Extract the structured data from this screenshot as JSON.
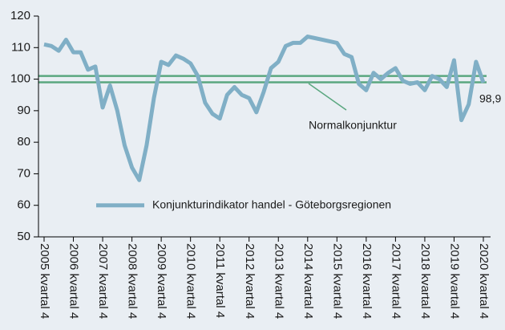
{
  "chart_data": {
    "type": "line",
    "categories": [
      "2005 kvartal 4",
      null,
      null,
      null,
      "2006 kvartal 4",
      null,
      null,
      null,
      "2007 kvartal 4",
      null,
      null,
      null,
      "2008 kvartal 4",
      null,
      null,
      null,
      "2009 kvartal 4",
      null,
      null,
      null,
      "2010 kvartal 4",
      null,
      null,
      null,
      "2011 kvartal 4",
      null,
      null,
      null,
      "2012 kvartal 4",
      null,
      null,
      null,
      "2013 kvartal 4",
      null,
      null,
      null,
      "2014 kvartal 4",
      null,
      null,
      null,
      "2015 kvartal 4",
      null,
      null,
      null,
      "2016 kvartal 4",
      null,
      null,
      null,
      "2017 kvartal 4",
      null,
      null,
      null,
      "2018 kvartal 4",
      null,
      null,
      null,
      "2019 kvartal 4",
      null,
      null,
      null,
      "2020 kvartal 4"
    ],
    "series": [
      {
        "name": "Konjunkturindikator handel - Göteborgsregionen",
        "color": "#80afc6",
        "values": [
          111,
          110.5,
          109,
          112.5,
          108.5,
          108.5,
          103,
          104,
          91,
          98,
          90,
          79,
          72,
          68,
          79,
          94,
          105.5,
          104.5,
          107.5,
          106.5,
          105,
          101,
          92.5,
          89,
          87.5,
          95,
          97.5,
          95,
          94,
          89.5,
          96,
          103.5,
          105.5,
          110.5,
          111.5,
          111.5,
          113.5,
          113,
          112.5,
          112,
          111.5,
          108,
          107,
          98.5,
          96.5,
          102,
          100,
          102,
          103.5,
          99.5,
          98.5,
          99,
          96.5,
          101,
          100,
          97.5,
          106,
          87,
          92,
          105.5,
          98.9
        ],
        "value_labels": [
          null,
          null,
          null,
          null,
          null,
          null,
          null,
          null,
          null,
          null,
          null,
          null,
          null,
          null,
          null,
          null,
          null,
          null,
          null,
          null,
          null,
          null,
          null,
          null,
          null,
          null,
          null,
          null,
          null,
          null,
          null,
          null,
          null,
          null,
          null,
          null,
          null,
          null,
          null,
          null,
          null,
          null,
          null,
          null,
          null,
          null,
          null,
          null,
          null,
          null,
          null,
          null,
          null,
          null,
          null,
          null,
          null,
          null,
          null,
          null,
          "98,9"
        ]
      }
    ],
    "reference_lines": {
      "values": [
        101,
        99
      ],
      "color": "#5aa77f",
      "label": "Normalkonjunktur"
    },
    "ylim": [
      50,
      120
    ],
    "yticks": [
      50,
      60,
      70,
      80,
      90,
      100,
      110,
      120
    ]
  }
}
